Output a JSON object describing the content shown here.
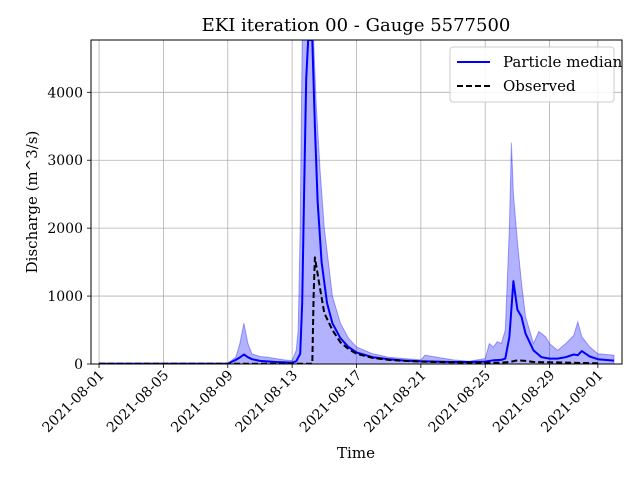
{
  "chart_data": {
    "type": "line",
    "title": "EKI iteration 00 - Gauge 5577500",
    "xlabel": "Time",
    "ylabel": "Discharge (m^3/s)",
    "x_ticks": [
      "2021-08-01",
      "2021-08-05",
      "2021-08-09",
      "2021-08-13",
      "2021-08-17",
      "2021-08-21",
      "2021-08-25",
      "2021-08-29",
      "2021-09-01"
    ],
    "y_ticks": [
      0,
      1000,
      2000,
      3000,
      4000
    ],
    "xlim": [
      "2021-07-31T12:00",
      "2021-09-02T12:00"
    ],
    "ylim": [
      0,
      4770
    ],
    "grid": true,
    "legend_position": "top-right",
    "colors": {
      "median": "#0000ff",
      "band_fill": "#0000ff",
      "observed": "#000000"
    },
    "series": [
      {
        "name": "Particle median",
        "style": "solid",
        "points": [
          [
            "2021-08-01T00:00",
            5
          ],
          [
            "2021-08-09T00:00",
            5
          ],
          [
            "2021-08-09T12:00",
            60
          ],
          [
            "2021-08-09T18:00",
            95
          ],
          [
            "2021-08-10T00:00",
            140
          ],
          [
            "2021-08-10T06:00",
            100
          ],
          [
            "2021-08-10T12:00",
            70
          ],
          [
            "2021-08-11T00:00",
            45
          ],
          [
            "2021-08-12T00:00",
            30
          ],
          [
            "2021-08-13T00:00",
            20
          ],
          [
            "2021-08-13T06:00",
            40
          ],
          [
            "2021-08-13T12:00",
            150
          ],
          [
            "2021-08-13T15:00",
            900
          ],
          [
            "2021-08-13T18:00",
            2600
          ],
          [
            "2021-08-13T21:00",
            4200
          ],
          [
            "2021-08-14T00:00",
            4770
          ],
          [
            "2021-08-14T06:00",
            4770
          ],
          [
            "2021-08-14T10:00",
            3500
          ],
          [
            "2021-08-14T14:00",
            2400
          ],
          [
            "2021-08-14T20:00",
            1500
          ],
          [
            "2021-08-15T04:00",
            900
          ],
          [
            "2021-08-15T12:00",
            600
          ],
          [
            "2021-08-16T00:00",
            380
          ],
          [
            "2021-08-16T12:00",
            250
          ],
          [
            "2021-08-17T00:00",
            170
          ],
          [
            "2021-08-18T00:00",
            100
          ],
          [
            "2021-08-19T00:00",
            70
          ],
          [
            "2021-08-20T00:00",
            50
          ],
          [
            "2021-08-21T00:00",
            40
          ],
          [
            "2021-08-22T00:00",
            35
          ],
          [
            "2021-08-23T00:00",
            30
          ],
          [
            "2021-08-24T00:00",
            30
          ],
          [
            "2021-08-25T00:00",
            35
          ],
          [
            "2021-08-25T12:00",
            55
          ],
          [
            "2021-08-26T00:00",
            60
          ],
          [
            "2021-08-26T06:00",
            80
          ],
          [
            "2021-08-26T12:00",
            400
          ],
          [
            "2021-08-26T18:00",
            1220
          ],
          [
            "2021-08-27T00:00",
            800
          ],
          [
            "2021-08-27T06:00",
            700
          ],
          [
            "2021-08-27T12:00",
            450
          ],
          [
            "2021-08-28T00:00",
            200
          ],
          [
            "2021-08-28T12:00",
            100
          ],
          [
            "2021-08-29T00:00",
            80
          ],
          [
            "2021-08-29T12:00",
            80
          ],
          [
            "2021-08-30T00:00",
            100
          ],
          [
            "2021-08-30T12:00",
            140
          ],
          [
            "2021-08-30T18:00",
            130
          ],
          [
            "2021-08-31T00:00",
            190
          ],
          [
            "2021-08-31T06:00",
            150
          ],
          [
            "2021-08-31T12:00",
            110
          ],
          [
            "2021-09-01T00:00",
            70
          ],
          [
            "2021-09-02T00:00",
            50
          ]
        ]
      },
      {
        "name": "Observed",
        "style": "dashed",
        "points": [
          [
            "2021-08-01T00:00",
            5
          ],
          [
            "2021-08-14T06:00",
            5
          ],
          [
            "2021-08-14T08:00",
            1000
          ],
          [
            "2021-08-14T10:00",
            1570
          ],
          [
            "2021-08-14T16:00",
            1200
          ],
          [
            "2021-08-15T00:00",
            750
          ],
          [
            "2021-08-15T12:00",
            500
          ],
          [
            "2021-08-16T00:00",
            320
          ],
          [
            "2021-08-16T12:00",
            220
          ],
          [
            "2021-08-17T00:00",
            150
          ],
          [
            "2021-08-18T00:00",
            90
          ],
          [
            "2021-08-19T00:00",
            60
          ],
          [
            "2021-08-20T00:00",
            45
          ],
          [
            "2021-08-21T00:00",
            35
          ],
          [
            "2021-08-22T00:00",
            30
          ],
          [
            "2021-08-23T00:00",
            25
          ],
          [
            "2021-08-24T00:00",
            20
          ],
          [
            "2021-08-25T00:00",
            18
          ],
          [
            "2021-08-26T00:00",
            20
          ],
          [
            "2021-08-26T12:00",
            30
          ],
          [
            "2021-08-27T00:00",
            55
          ],
          [
            "2021-08-27T12:00",
            45
          ],
          [
            "2021-08-28T00:00",
            30
          ],
          [
            "2021-08-29T00:00",
            25
          ],
          [
            "2021-08-30T00:00",
            20
          ],
          [
            "2021-08-31T00:00",
            15
          ],
          [
            "2021-09-01T00:00",
            10
          ]
        ]
      },
      {
        "name": "",
        "style": "band",
        "upper": [
          [
            "2021-08-01T00:00",
            10
          ],
          [
            "2021-08-09T00:00",
            10
          ],
          [
            "2021-08-09T12:00",
            100
          ],
          [
            "2021-08-09T18:00",
            300
          ],
          [
            "2021-08-10T00:00",
            600
          ],
          [
            "2021-08-10T06:00",
            300
          ],
          [
            "2021-08-10T12:00",
            150
          ],
          [
            "2021-08-11T00:00",
            110
          ],
          [
            "2021-08-11T12:00",
            100
          ],
          [
            "2021-08-12T00:00",
            80
          ],
          [
            "2021-08-12T12:00",
            60
          ],
          [
            "2021-08-13T00:00",
            50
          ],
          [
            "2021-08-13T06:00",
            200
          ],
          [
            "2021-08-13T09:00",
            500
          ],
          [
            "2021-08-13T12:00",
            2000
          ],
          [
            "2021-08-13T15:00",
            4770
          ],
          [
            "2021-08-14T08:00",
            4770
          ],
          [
            "2021-08-14T12:00",
            3800
          ],
          [
            "2021-08-14T18:00",
            2800
          ],
          [
            "2021-08-15T00:00",
            2000
          ],
          [
            "2021-08-15T12:00",
            1000
          ],
          [
            "2021-08-16T00:00",
            600
          ],
          [
            "2021-08-16T12:00",
            380
          ],
          [
            "2021-08-17T00:00",
            250
          ],
          [
            "2021-08-18T00:00",
            150
          ],
          [
            "2021-08-19T00:00",
            100
          ],
          [
            "2021-08-20T00:00",
            80
          ],
          [
            "2021-08-21T00:00",
            60
          ],
          [
            "2021-08-21T06:00",
            130
          ],
          [
            "2021-08-22T00:00",
            100
          ],
          [
            "2021-08-23T00:00",
            60
          ],
          [
            "2021-08-24T00:00",
            40
          ],
          [
            "2021-08-25T00:00",
            80
          ],
          [
            "2021-08-25T06:00",
            300
          ],
          [
            "2021-08-25T12:00",
            250
          ],
          [
            "2021-08-25T18:00",
            330
          ],
          [
            "2021-08-26T00:00",
            300
          ],
          [
            "2021-08-26T06:00",
            500
          ],
          [
            "2021-08-26T12:00",
            2000
          ],
          [
            "2021-08-26T15:00",
            3260
          ],
          [
            "2021-08-26T18:00",
            2500
          ],
          [
            "2021-08-27T00:00",
            1800
          ],
          [
            "2021-08-27T06:00",
            1200
          ],
          [
            "2021-08-27T12:00",
            700
          ],
          [
            "2021-08-28T00:00",
            300
          ],
          [
            "2021-08-28T08:00",
            480
          ],
          [
            "2021-08-28T18:00",
            400
          ],
          [
            "2021-08-29T00:00",
            300
          ],
          [
            "2021-08-29T12:00",
            200
          ],
          [
            "2021-08-30T00:00",
            300
          ],
          [
            "2021-08-30T12:00",
            420
          ],
          [
            "2021-08-30T18:00",
            620
          ],
          [
            "2021-08-31T00:00",
            400
          ],
          [
            "2021-08-31T12:00",
            250
          ],
          [
            "2021-09-01T00:00",
            150
          ],
          [
            "2021-09-02T00:00",
            130
          ]
        ],
        "lower": [
          [
            "2021-08-01T00:00",
            0
          ],
          [
            "2021-09-02T00:00",
            0
          ]
        ]
      }
    ]
  }
}
